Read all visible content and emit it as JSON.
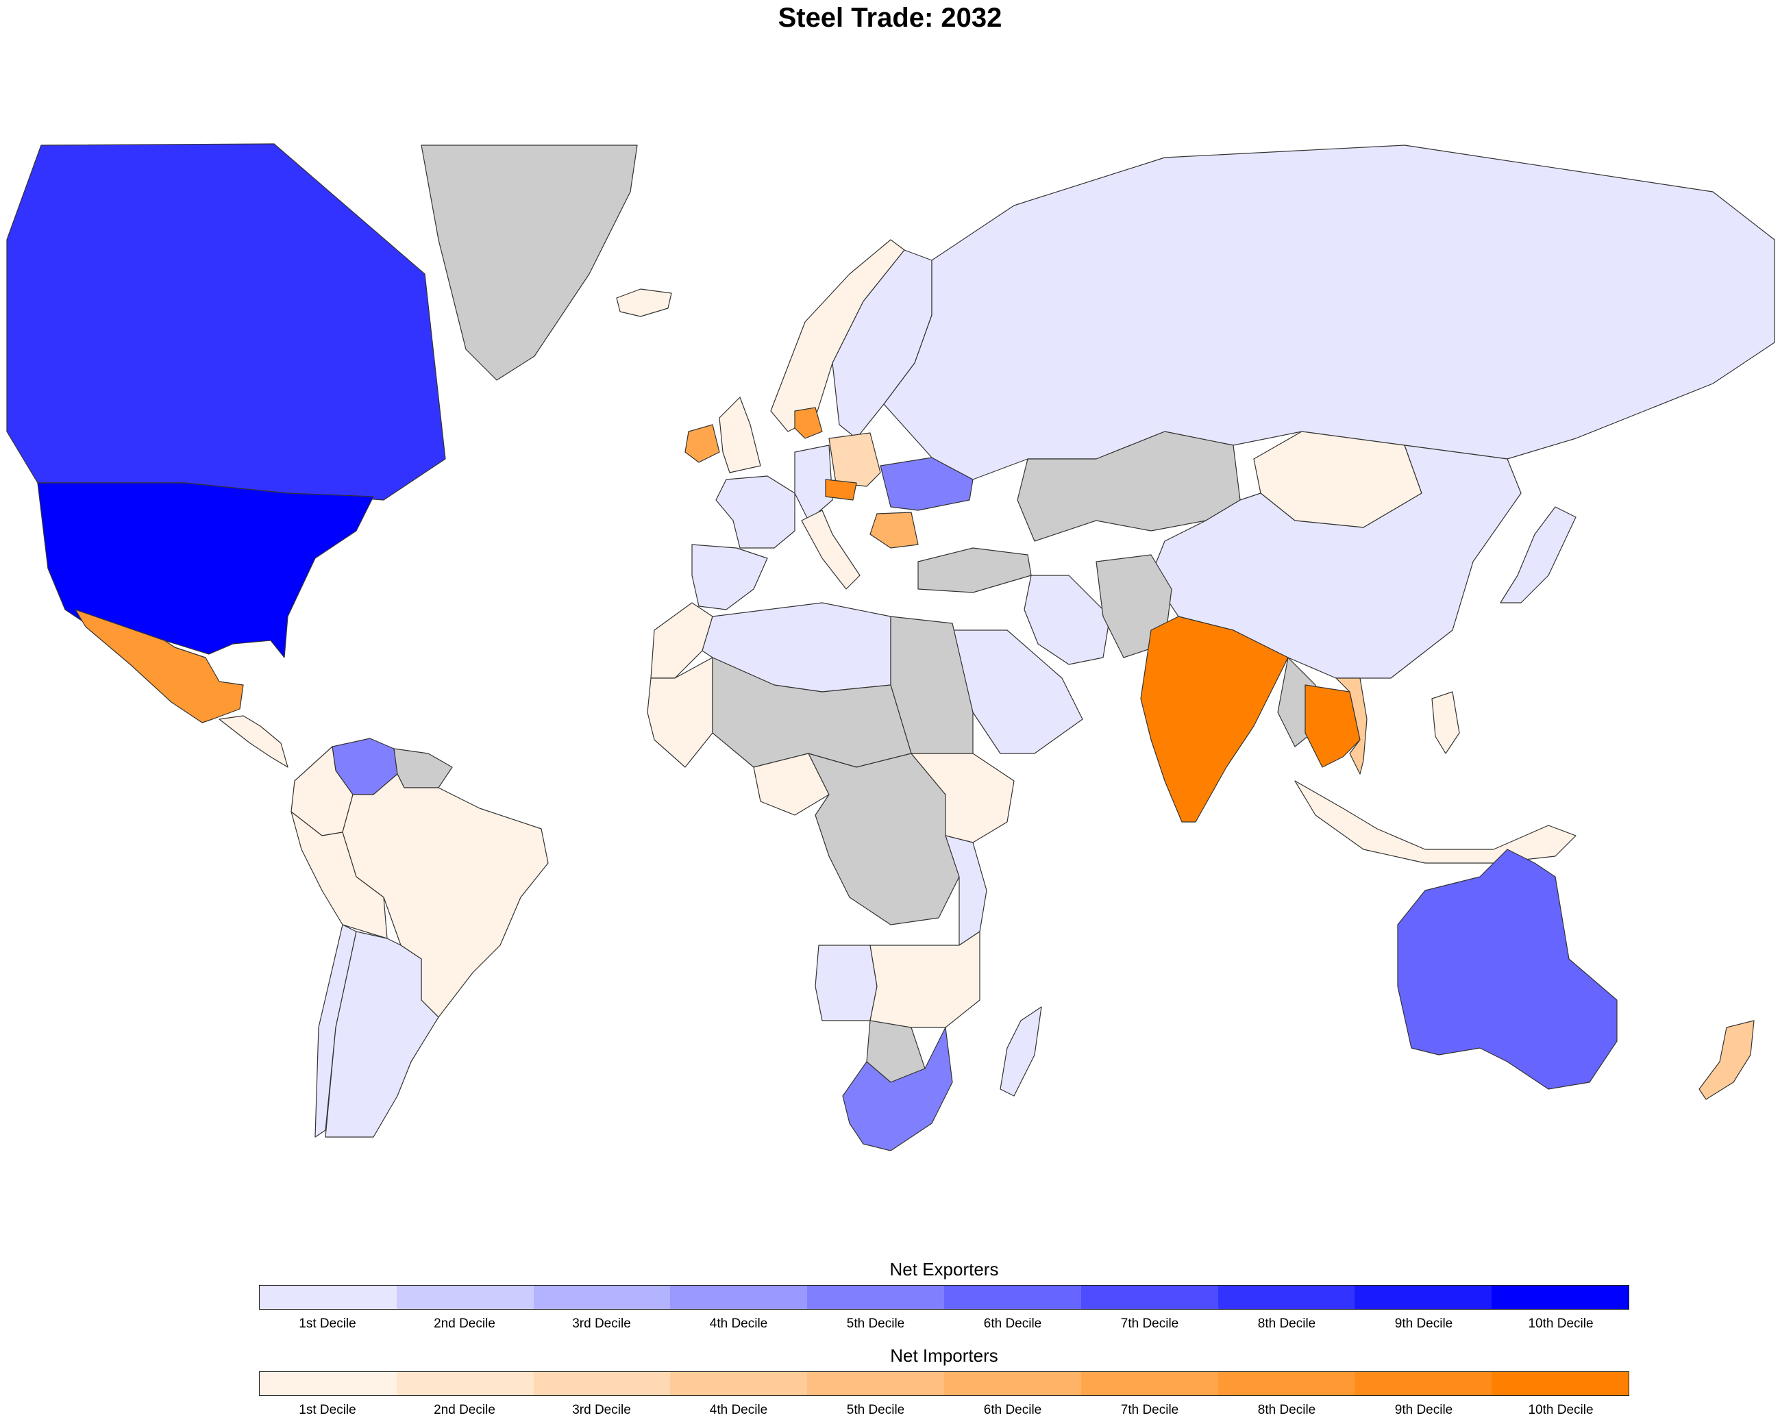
{
  "title": "Steel Trade: 2032",
  "colors": {
    "no_data": "#cccccc",
    "border": "#333333",
    "exporters": [
      "#e6e6ff",
      "#ccccff",
      "#b3b3ff",
      "#9999ff",
      "#8080ff",
      "#6666ff",
      "#4d4dff",
      "#3333ff",
      "#1a1aff",
      "#0000ff"
    ],
    "importers": [
      "#fff2e6",
      "#ffe6cc",
      "#ffd9b3",
      "#ffcc99",
      "#ffbf80",
      "#ffb366",
      "#ffa64d",
      "#ff9933",
      "#ff8c1a",
      "#ff8000"
    ]
  },
  "legend": {
    "exporters": {
      "title": "Net Exporters",
      "labels": [
        "1st Decile",
        "2nd Decile",
        "3rd Decile",
        "4th Decile",
        "5th Decile",
        "6th Decile",
        "7th Decile",
        "8th Decile",
        "9th Decile",
        "10th Decile"
      ]
    },
    "importers": {
      "title": "Net Importers",
      "labels": [
        "1st Decile",
        "2nd Decile",
        "3rd Decile",
        "4th Decile",
        "5th Decile",
        "6th Decile",
        "7th Decile",
        "8th Decile",
        "9th Decile",
        "10th Decile"
      ]
    }
  },
  "regions": [
    {
      "name": "canada",
      "group": "exporters",
      "decile": 8
    },
    {
      "name": "united-states",
      "group": "exporters",
      "decile": 10
    },
    {
      "name": "mexico",
      "group": "importers",
      "decile": 8
    },
    {
      "name": "greenland",
      "group": "none",
      "decile": 0
    },
    {
      "name": "central-america",
      "group": "importers",
      "decile": 1
    },
    {
      "name": "venezuela",
      "group": "exporters",
      "decile": 5
    },
    {
      "name": "guianas",
      "group": "none",
      "decile": 0
    },
    {
      "name": "colombia",
      "group": "importers",
      "decile": 1
    },
    {
      "name": "brazil",
      "group": "importers",
      "decile": 1
    },
    {
      "name": "peru",
      "group": "importers",
      "decile": 1
    },
    {
      "name": "chile",
      "group": "exporters",
      "decile": 1
    },
    {
      "name": "argentina",
      "group": "exporters",
      "decile": 1
    },
    {
      "name": "iceland",
      "group": "importers",
      "decile": 1
    },
    {
      "name": "norway",
      "group": "importers",
      "decile": 1
    },
    {
      "name": "sweden-finland",
      "group": "exporters",
      "decile": 1
    },
    {
      "name": "denmark",
      "group": "importers",
      "decile": 8
    },
    {
      "name": "ireland",
      "group": "importers",
      "decile": 7
    },
    {
      "name": "united-kingdom",
      "group": "importers",
      "decile": 1
    },
    {
      "name": "france",
      "group": "exporters",
      "decile": 1
    },
    {
      "name": "iberia",
      "group": "exporters",
      "decile": 1
    },
    {
      "name": "germany",
      "group": "exporters",
      "decile": 1
    },
    {
      "name": "poland",
      "group": "importers",
      "decile": 3
    },
    {
      "name": "czechia",
      "group": "importers",
      "decile": 9
    },
    {
      "name": "ukraine",
      "group": "exporters",
      "decile": 5
    },
    {
      "name": "balkans",
      "group": "importers",
      "decile": 6
    },
    {
      "name": "italy",
      "group": "importers",
      "decile": 1
    },
    {
      "name": "russia",
      "group": "exporters",
      "decile": 1
    },
    {
      "name": "kazakhstan",
      "group": "none",
      "decile": 0
    },
    {
      "name": "mongolia",
      "group": "importers",
      "decile": 1
    },
    {
      "name": "china",
      "group": "exporters",
      "decile": 1
    },
    {
      "name": "turkey",
      "group": "none",
      "decile": 0
    },
    {
      "name": "iran",
      "group": "exporters",
      "decile": 1
    },
    {
      "name": "afghanistan-pakistan",
      "group": "none",
      "decile": 0
    },
    {
      "name": "saudi-arabia",
      "group": "exporters",
      "decile": 1
    },
    {
      "name": "india",
      "group": "importers",
      "decile": 10
    },
    {
      "name": "myanmar",
      "group": "none",
      "decile": 0
    },
    {
      "name": "thailand",
      "group": "importers",
      "decile": 10
    },
    {
      "name": "vietnam",
      "group": "importers",
      "decile": 4
    },
    {
      "name": "japan",
      "group": "exporters",
      "decile": 1
    },
    {
      "name": "indonesia",
      "group": "importers",
      "decile": 1
    },
    {
      "name": "philippines",
      "group": "importers",
      "decile": 1
    },
    {
      "name": "australia",
      "group": "exporters",
      "decile": 6
    },
    {
      "name": "new-zealand",
      "group": "importers",
      "decile": 4
    },
    {
      "name": "algeria-libya",
      "group": "exporters",
      "decile": 1
    },
    {
      "name": "morocco",
      "group": "importers",
      "decile": 1
    },
    {
      "name": "egypt-sudan",
      "group": "none",
      "decile": 0
    },
    {
      "name": "west-africa",
      "group": "importers",
      "decile": 1
    },
    {
      "name": "sahel",
      "group": "none",
      "decile": 0
    },
    {
      "name": "nigeria",
      "group": "importers",
      "decile": 1
    },
    {
      "name": "central-africa",
      "group": "none",
      "decile": 0
    },
    {
      "name": "ethiopia",
      "group": "importers",
      "decile": 1
    },
    {
      "name": "east-africa",
      "group": "exporters",
      "decile": 1
    },
    {
      "name": "angola",
      "group": "exporters",
      "decile": 1
    },
    {
      "name": "southern-africa",
      "group": "importers",
      "decile": 1
    },
    {
      "name": "botswana",
      "group": "none",
      "decile": 0
    },
    {
      "name": "south-africa",
      "group": "exporters",
      "decile": 5
    },
    {
      "name": "madagascar",
      "group": "exporters",
      "decile": 1
    }
  ]
}
